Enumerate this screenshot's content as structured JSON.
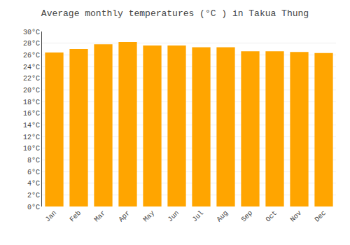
{
  "chart_data": {
    "type": "bar",
    "title": "Average monthly temperatures (°C ) in Takua Thung",
    "categories": [
      "Jan",
      "Feb",
      "Mar",
      "Apr",
      "May",
      "Jun",
      "Jul",
      "Aug",
      "Sep",
      "Oct",
      "Nov",
      "Dec"
    ],
    "values": [
      26.4,
      27.0,
      27.8,
      28.2,
      27.6,
      27.6,
      27.3,
      27.3,
      26.6,
      26.6,
      26.5,
      26.3
    ],
    "color": "#FFA500",
    "ylim": [
      0,
      30
    ],
    "yticks": [
      {
        "value": 0,
        "label": "0°C"
      },
      {
        "value": 2,
        "label": "2°C"
      },
      {
        "value": 4,
        "label": "4°C"
      },
      {
        "value": 6,
        "label": "6°C"
      },
      {
        "value": 8,
        "label": "8°C"
      },
      {
        "value": 10,
        "label": "10°C"
      },
      {
        "value": 12,
        "label": "12°C"
      },
      {
        "value": 14,
        "label": "14°C"
      },
      {
        "value": 16,
        "label": "16°C"
      },
      {
        "value": 18,
        "label": "18°C"
      },
      {
        "value": 20,
        "label": "20°C"
      },
      {
        "value": 22,
        "label": "22°C"
      },
      {
        "value": 24,
        "label": "24°C"
      },
      {
        "value": 26,
        "label": "26°C"
      },
      {
        "value": 28,
        "label": "28°C"
      },
      {
        "value": 30,
        "label": "30°C"
      }
    ],
    "grid": true
  }
}
